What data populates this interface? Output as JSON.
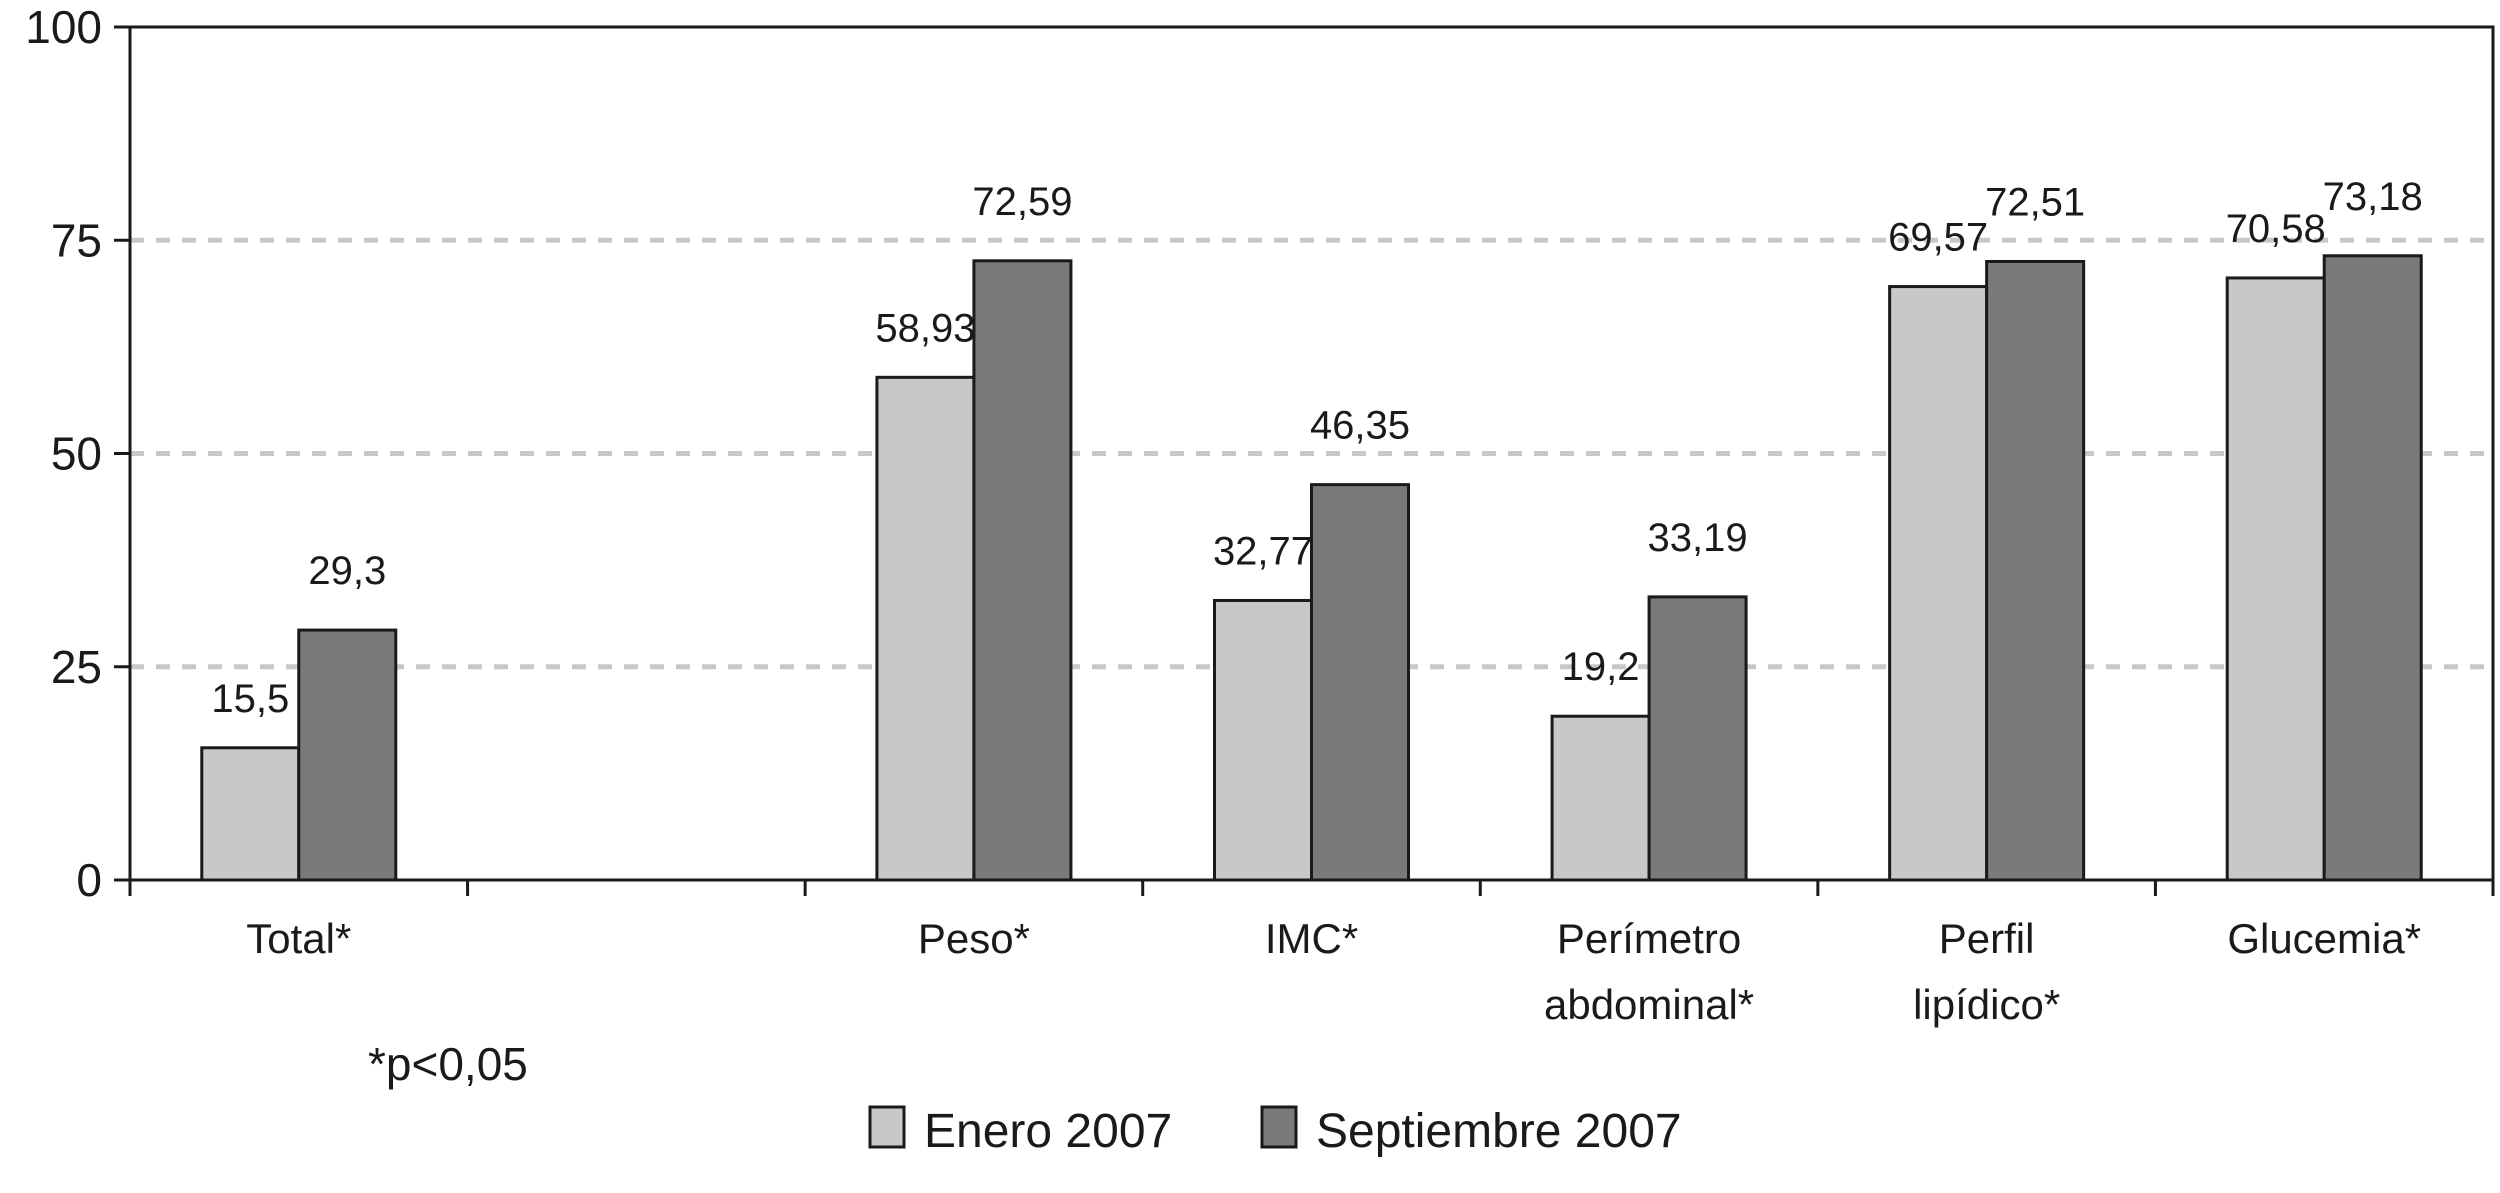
{
  "chart_data": {
    "type": "bar",
    "categories": [
      "Total*",
      "",
      "Peso*",
      "IMC*",
      "Perímetro abdominal*",
      "Perfil lipídico*",
      "Glucemia*"
    ],
    "category_lines": [
      [
        "Total*"
      ],
      [],
      [
        "Peso*"
      ],
      [
        "IMC*"
      ],
      [
        "Perímetro",
        "abdominal*"
      ],
      [
        "Perfil",
        "lipídico*"
      ],
      [
        "Glucemia*"
      ]
    ],
    "series": [
      {
        "name": "Enero 2007",
        "values": [
          15.5,
          null,
          58.93,
          32.77,
          19.2,
          69.57,
          70.58
        ],
        "labels": [
          "15,5",
          "",
          "58,93",
          "32,77",
          "19,2",
          "69,57",
          "70,58"
        ],
        "color": "#c8c8c8"
      },
      {
        "name": "Septiembre 2007",
        "values": [
          29.3,
          null,
          72.59,
          46.35,
          33.19,
          72.51,
          73.18
        ],
        "labels": [
          "29,3",
          "",
          "72,59",
          "46,35",
          "33,19",
          "72,51",
          "73,18"
        ],
        "color": "#7a7a7a"
      }
    ],
    "yticks": [
      "0",
      "25",
      "50",
      "75",
      "100"
    ],
    "ylim": [
      0,
      100
    ],
    "grid": "horizontal dashed",
    "legend": "bottom",
    "note": "*p<0,05"
  }
}
